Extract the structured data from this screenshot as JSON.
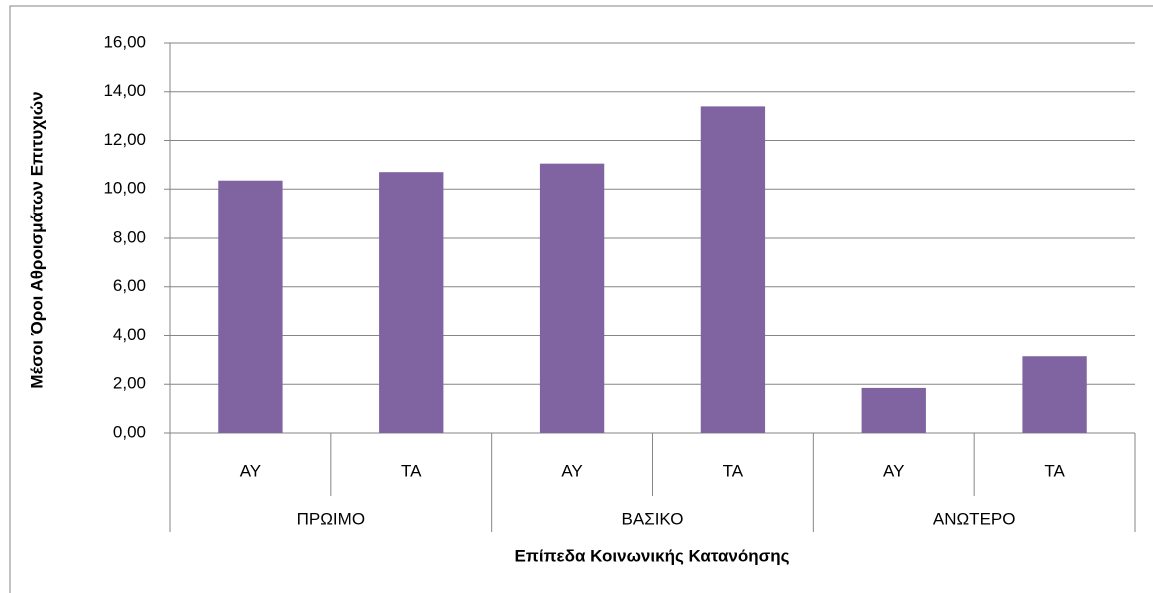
{
  "chart_data": {
    "type": "bar",
    "categories": [
      "ΑΥ",
      "ΤΑ",
      "ΑΥ",
      "ΤΑ",
      "ΑΥ",
      "ΤΑ"
    ],
    "groups": [
      "ΠΡΩΙΜΟ",
      "ΒΑΣΙΚΟ",
      "ΑΝΩΤΕΡΟ"
    ],
    "values": [
      10.35,
      10.7,
      11.05,
      13.4,
      1.85,
      3.15
    ],
    "color": "#8064a2",
    "x_label": "Επίπεδα Κοινωνικής Κατανόησης",
    "y_label": "Μέσοι Όροι Αθροισμάτων Επιτυχιών",
    "ylim": [
      0,
      16
    ],
    "yticks": [
      {
        "value": 0,
        "label": "0,00"
      },
      {
        "value": 2,
        "label": "2,00"
      },
      {
        "value": 4,
        "label": "4,00"
      },
      {
        "value": 6,
        "label": "6,00"
      },
      {
        "value": 8,
        "label": "8,00"
      },
      {
        "value": 10,
        "label": "10,00"
      },
      {
        "value": 12,
        "label": "12,00"
      },
      {
        "value": 14,
        "label": "14,00"
      },
      {
        "value": 16,
        "label": "16,00"
      }
    ],
    "grid": true
  }
}
